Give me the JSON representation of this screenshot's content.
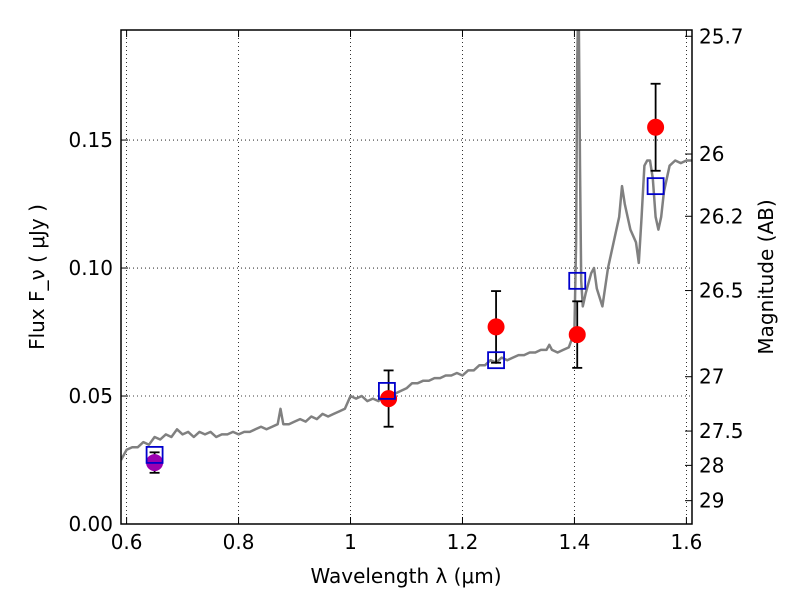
{
  "chart_data": {
    "type": "scatter",
    "xlabel": "Wavelength  λ (μm)",
    "ylabel_left": "Flux  F_ν  ( μJy )",
    "ylabel_right": "Magnitude (AB)",
    "xlim": [
      0.59,
      1.61
    ],
    "ylim": [
      0.0,
      0.193
    ],
    "grid": true,
    "grid_style": "dotted",
    "x_ticks": [
      {
        "value": 0.6,
        "label": "0.6"
      },
      {
        "value": 0.8,
        "label": "0.8"
      },
      {
        "value": 1.0,
        "label": "1"
      },
      {
        "value": 1.2,
        "label": "1.2"
      },
      {
        "value": 1.4,
        "label": "1.4"
      },
      {
        "value": 1.6,
        "label": "1.6"
      }
    ],
    "y_ticks": [
      {
        "value": 0.0,
        "label": "0.00"
      },
      {
        "value": 0.05,
        "label": "0.05"
      },
      {
        "value": 0.1,
        "label": "0.10"
      },
      {
        "value": 0.15,
        "label": "0.15"
      }
    ],
    "right_ticks": [
      {
        "label": "25.7",
        "mag": 25.7
      },
      {
        "label": "26",
        "mag": 26.0
      },
      {
        "label": "26.2",
        "mag": 26.2
      },
      {
        "label": "26.5",
        "mag": 26.5
      },
      {
        "label": "27",
        "mag": 27.0
      },
      {
        "label": "27.5",
        "mag": 27.5
      },
      {
        "label": "28",
        "mag": 28.0
      },
      {
        "label": "29",
        "mag": 29.0
      }
    ],
    "spectrum": {
      "color": "#808080",
      "points": [
        [
          0.59,
          0.025
        ],
        [
          0.6,
          0.029
        ],
        [
          0.61,
          0.03
        ],
        [
          0.62,
          0.03
        ],
        [
          0.63,
          0.032
        ],
        [
          0.64,
          0.031
        ],
        [
          0.65,
          0.034
        ],
        [
          0.66,
          0.033
        ],
        [
          0.67,
          0.035
        ],
        [
          0.68,
          0.034
        ],
        [
          0.69,
          0.037
        ],
        [
          0.7,
          0.035
        ],
        [
          0.71,
          0.036
        ],
        [
          0.72,
          0.034
        ],
        [
          0.73,
          0.036
        ],
        [
          0.74,
          0.035
        ],
        [
          0.75,
          0.036
        ],
        [
          0.76,
          0.034
        ],
        [
          0.77,
          0.035
        ],
        [
          0.78,
          0.035
        ],
        [
          0.79,
          0.036
        ],
        [
          0.8,
          0.035
        ],
        [
          0.81,
          0.036
        ],
        [
          0.82,
          0.036
        ],
        [
          0.83,
          0.037
        ],
        [
          0.84,
          0.038
        ],
        [
          0.85,
          0.037
        ],
        [
          0.86,
          0.038
        ],
        [
          0.87,
          0.039
        ],
        [
          0.875,
          0.045
        ],
        [
          0.88,
          0.039
        ],
        [
          0.89,
          0.039
        ],
        [
          0.9,
          0.04
        ],
        [
          0.91,
          0.041
        ],
        [
          0.92,
          0.04
        ],
        [
          0.93,
          0.042
        ],
        [
          0.94,
          0.041
        ],
        [
          0.95,
          0.043
        ],
        [
          0.96,
          0.042
        ],
        [
          0.97,
          0.043
        ],
        [
          0.98,
          0.044
        ],
        [
          0.99,
          0.045
        ],
        [
          1.0,
          0.05
        ],
        [
          1.01,
          0.049
        ],
        [
          1.02,
          0.05
        ],
        [
          1.03,
          0.048
        ],
        [
          1.04,
          0.049
        ],
        [
          1.05,
          0.048
        ],
        [
          1.06,
          0.051
        ],
        [
          1.07,
          0.05
        ],
        [
          1.08,
          0.051
        ],
        [
          1.09,
          0.052
        ],
        [
          1.1,
          0.053
        ],
        [
          1.11,
          0.055
        ],
        [
          1.12,
          0.055
        ],
        [
          1.13,
          0.056
        ],
        [
          1.14,
          0.056
        ],
        [
          1.15,
          0.057
        ],
        [
          1.16,
          0.057
        ],
        [
          1.17,
          0.058
        ],
        [
          1.18,
          0.058
        ],
        [
          1.19,
          0.059
        ],
        [
          1.2,
          0.058
        ],
        [
          1.21,
          0.06
        ],
        [
          1.22,
          0.06
        ],
        [
          1.23,
          0.062
        ],
        [
          1.24,
          0.062
        ],
        [
          1.25,
          0.064
        ],
        [
          1.26,
          0.063
        ],
        [
          1.27,
          0.065
        ],
        [
          1.28,
          0.064
        ],
        [
          1.29,
          0.065
        ],
        [
          1.3,
          0.066
        ],
        [
          1.31,
          0.066
        ],
        [
          1.32,
          0.067
        ],
        [
          1.33,
          0.067
        ],
        [
          1.34,
          0.068
        ],
        [
          1.35,
          0.068
        ],
        [
          1.355,
          0.07
        ],
        [
          1.36,
          0.068
        ],
        [
          1.37,
          0.067
        ],
        [
          1.38,
          0.068
        ],
        [
          1.39,
          0.069
        ],
        [
          1.395,
          0.072
        ],
        [
          1.4,
          0.075
        ],
        [
          1.403,
          0.11
        ],
        [
          1.405,
          0.18
        ],
        [
          1.406,
          0.193
        ],
        [
          1.408,
          0.193
        ],
        [
          1.41,
          0.14
        ],
        [
          1.412,
          0.095
        ],
        [
          1.415,
          0.085
        ],
        [
          1.42,
          0.09
        ],
        [
          1.43,
          0.098
        ],
        [
          1.435,
          0.1
        ],
        [
          1.44,
          0.092
        ],
        [
          1.45,
          0.085
        ],
        [
          1.46,
          0.1
        ],
        [
          1.47,
          0.11
        ],
        [
          1.48,
          0.12
        ],
        [
          1.485,
          0.132
        ],
        [
          1.49,
          0.125
        ],
        [
          1.5,
          0.115
        ],
        [
          1.51,
          0.11
        ],
        [
          1.515,
          0.102
        ],
        [
          1.52,
          0.12
        ],
        [
          1.525,
          0.14
        ],
        [
          1.53,
          0.142
        ],
        [
          1.535,
          0.142
        ],
        [
          1.54,
          0.135
        ],
        [
          1.545,
          0.12
        ],
        [
          1.55,
          0.115
        ],
        [
          1.555,
          0.12
        ],
        [
          1.56,
          0.13
        ],
        [
          1.57,
          0.14
        ],
        [
          1.58,
          0.142
        ],
        [
          1.59,
          0.141
        ],
        [
          1.6,
          0.142
        ],
        [
          1.61,
          0.142
        ]
      ]
    },
    "model_points": {
      "marker": "open-square",
      "color": "#0000cc",
      "x": [
        0.65,
        1.065,
        1.26,
        1.405,
        1.545
      ],
      "y": [
        0.027,
        0.052,
        0.064,
        0.095,
        0.132
      ]
    },
    "observed_points": {
      "marker": "filled-circle",
      "colors": [
        "#9b00b0",
        "#ff0000",
        "#ff0000",
        "#ff0000",
        "#ff0000"
      ],
      "x": [
        0.65,
        1.068,
        1.26,
        1.405,
        1.545
      ],
      "y": [
        0.024,
        0.049,
        0.077,
        0.074,
        0.155
      ],
      "err_low": [
        0.004,
        0.011,
        0.014,
        0.013,
        0.017
      ],
      "err_high": [
        0.004,
        0.011,
        0.014,
        0.013,
        0.017
      ]
    }
  }
}
